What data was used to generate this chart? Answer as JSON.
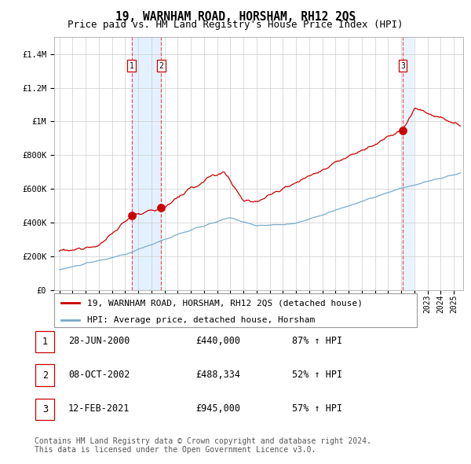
{
  "title": "19, WARNHAM ROAD, HORSHAM, RH12 2QS",
  "subtitle": "Price paid vs. HM Land Registry's House Price Index (HPI)",
  "ylim": [
    0,
    1500000
  ],
  "yticks": [
    0,
    200000,
    400000,
    600000,
    800000,
    1000000,
    1200000,
    1400000
  ],
  "ytick_labels": [
    "£0",
    "£200K",
    "£400K",
    "£600K",
    "£800K",
    "£1M",
    "£1.2M",
    "£1.4M"
  ],
  "red_line_color": "#cc0000",
  "blue_line_color": "#7aabcc",
  "grid_color": "#cccccc",
  "background_color": "#ffffff",
  "vline_color": "#ee5555",
  "vspan_color": "#ddeeff",
  "sale_t": [
    2000.497,
    2002.747,
    2021.117
  ],
  "sale_prices": [
    440000,
    488334,
    945000
  ],
  "sale_labels": [
    "1",
    "2",
    "3"
  ],
  "legend_entry1": "19, WARNHAM ROAD, HORSHAM, RH12 2QS (detached house)",
  "legend_entry2": "HPI: Average price, detached house, Horsham",
  "table_rows": [
    [
      "1",
      "28-JUN-2000",
      "£440,000",
      "87% ↑ HPI"
    ],
    [
      "2",
      "08-OCT-2002",
      "£488,334",
      "52% ↑ HPI"
    ],
    [
      "3",
      "12-FEB-2021",
      "£945,000",
      "57% ↑ HPI"
    ]
  ],
  "footer": "Contains HM Land Registry data © Crown copyright and database right 2024.\nThis data is licensed under the Open Government Licence v3.0.",
  "title_fontsize": 10.5,
  "subtitle_fontsize": 9,
  "tick_fontsize": 7.5,
  "legend_fontsize": 8,
  "table_fontsize": 8.5,
  "footer_fontsize": 7
}
